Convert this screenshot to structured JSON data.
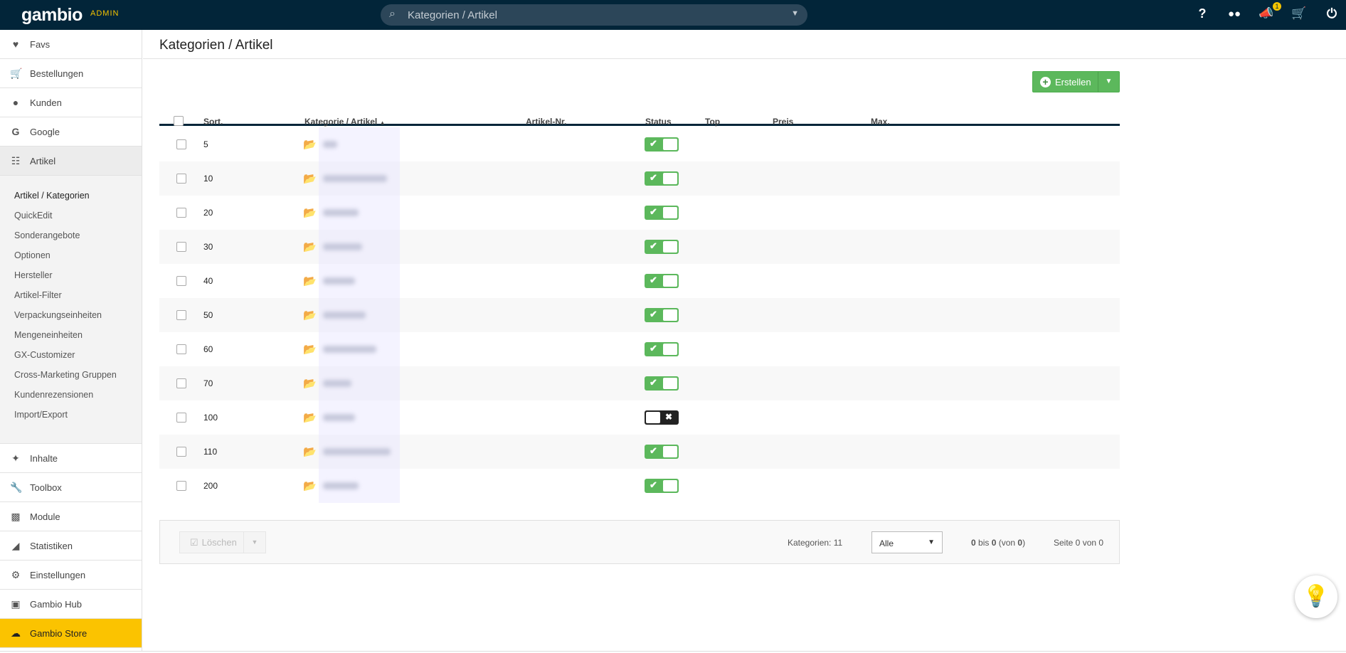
{
  "topbar": {
    "logo": "gambio",
    "admin": "ADMIN",
    "search_placeholder": "Kategorien / Artikel",
    "notification_count": "1",
    "icons": [
      "help-icon",
      "users-icon",
      "megaphone-icon",
      "cart-icon",
      "power-icon"
    ]
  },
  "sidebar": {
    "top_items": [
      {
        "label": "Favs",
        "icon": "heart-icon"
      },
      {
        "label": "Bestellungen",
        "icon": "cart-icon"
      },
      {
        "label": "Kunden",
        "icon": "users-icon"
      },
      {
        "label": "Google",
        "icon": "google-icon"
      },
      {
        "label": "Artikel",
        "icon": "sitemap-icon"
      }
    ],
    "submenu": [
      "Artikel / Kategorien",
      "QuickEdit",
      "Sonderangebote",
      "Optionen",
      "Hersteller",
      "Artikel-Filter",
      "Verpackungseinheiten",
      "Mengeneinheiten",
      "GX-Customizer",
      "Cross-Marketing Gruppen",
      "Kundenrezensionen",
      "Import/Export"
    ],
    "bottom_items": [
      {
        "label": "Inhalte",
        "icon": "magic-wand-icon"
      },
      {
        "label": "Toolbox",
        "icon": "wrench-icon"
      },
      {
        "label": "Module",
        "icon": "puzzle-icon"
      },
      {
        "label": "Statistiken",
        "icon": "area-chart-icon"
      },
      {
        "label": "Einstellungen",
        "icon": "gears-icon"
      },
      {
        "label": "Gambio Hub",
        "icon": "share-icon"
      },
      {
        "label": "Gambio Store",
        "icon": "cloud-download-icon"
      }
    ],
    "store_color": "#fbc300"
  },
  "main": {
    "title": "Kategorien / Artikel",
    "create_label": "Erstellen",
    "columns": {
      "sort": "Sort.",
      "name": "Kategorie / Artikel",
      "sku": "Artikel-Nr.",
      "status": "Status",
      "top": "Top",
      "price": "Preis",
      "max": "Max."
    },
    "rows": [
      {
        "sort": "5",
        "status": true
      },
      {
        "sort": "10",
        "status": true
      },
      {
        "sort": "20",
        "status": true
      },
      {
        "sort": "30",
        "status": true
      },
      {
        "sort": "40",
        "status": true
      },
      {
        "sort": "50",
        "status": true
      },
      {
        "sort": "60",
        "status": true
      },
      {
        "sort": "70",
        "status": true
      },
      {
        "sort": "100",
        "status": false
      },
      {
        "sort": "110",
        "status": true
      },
      {
        "sort": "200",
        "status": true
      }
    ],
    "footer": {
      "delete_label": "Löschen",
      "count_label": "Kategorien: 11",
      "per_page": "Alle",
      "range_a": "0",
      "range_bis": " bis ",
      "range_b": "0",
      "range_von": " (von ",
      "range_c": "0",
      "range_end": ")",
      "page_info": "Seite 0 von 0"
    },
    "accent": "#5cb85c"
  }
}
